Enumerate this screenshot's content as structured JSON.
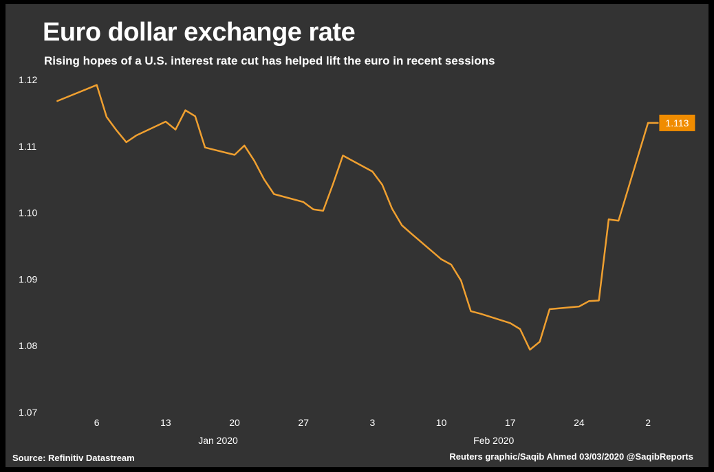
{
  "colors": {
    "background": "#333333",
    "line": "#f0a030",
    "label_bg": "#f08c00",
    "text": "#ffffff"
  },
  "header": {
    "title": "Euro dollar exchange rate",
    "subtitle": "Rising hopes of a U.S. interest rate cut has helped lift the euro in recent sessions"
  },
  "footer": {
    "source": "Source: Refinitiv Datastream",
    "credit": "Reuters graphic/Saqib Ahmed 03/03/2020 @SaqibReports"
  },
  "chart_data": {
    "type": "line",
    "title": "Euro dollar exchange rate",
    "subtitle": "Rising hopes of a U.S. interest rate cut has helped lift the euro in recent sessions",
    "ylim": [
      1.07,
      1.12
    ],
    "yticks": [
      "1.12",
      "1.11",
      "1.10",
      "1.09",
      "1.08",
      "1.07"
    ],
    "ytick_values": [
      1.12,
      1.11,
      1.1,
      1.09,
      1.08,
      1.07
    ],
    "xticks": [
      {
        "label": "6",
        "date": "2020-01-06"
      },
      {
        "label": "13",
        "date": "2020-01-13"
      },
      {
        "label": "20",
        "date": "2020-01-20"
      },
      {
        "label": "27",
        "date": "2020-01-27"
      },
      {
        "label": "3",
        "date": "2020-02-03"
      },
      {
        "label": "10",
        "date": "2020-02-10"
      },
      {
        "label": "17",
        "date": "2020-02-17"
      },
      {
        "label": "24",
        "date": "2020-02-24"
      },
      {
        "label": "2",
        "date": "2020-03-02"
      }
    ],
    "month_labels": [
      {
        "label": "Jan 2020",
        "date": "2020-01-20"
      },
      {
        "label": "Feb 2020",
        "date": "2020-02-17"
      }
    ],
    "grid": false,
    "end_label": "1.113",
    "series": [
      {
        "x": [
          "2020-01-02",
          "2020-01-06",
          "2020-01-07",
          "2020-01-08",
          "2020-01-09",
          "2020-01-10",
          "2020-01-13",
          "2020-01-14",
          "2020-01-15",
          "2020-01-16",
          "2020-01-17",
          "2020-01-20",
          "2020-01-21",
          "2020-01-22",
          "2020-01-23",
          "2020-01-24",
          "2020-01-27",
          "2020-01-28",
          "2020-01-29",
          "2020-01-30",
          "2020-01-31",
          "2020-02-03",
          "2020-02-04",
          "2020-02-05",
          "2020-02-06",
          "2020-02-07",
          "2020-02-10",
          "2020-02-11",
          "2020-02-12",
          "2020-02-13",
          "2020-02-14",
          "2020-02-17",
          "2020-02-18",
          "2020-02-19",
          "2020-02-20",
          "2020-02-21",
          "2020-02-24",
          "2020-02-25",
          "2020-02-26",
          "2020-02-27",
          "2020-02-28",
          "2020-03-02",
          "2020-03-03"
        ],
        "values": [
          1.1168,
          1.1192,
          1.1144,
          1.1124,
          1.1106,
          1.1116,
          1.1137,
          1.1125,
          1.1154,
          1.1145,
          1.1098,
          1.1087,
          1.1101,
          1.1078,
          1.105,
          1.1028,
          1.1016,
          1.1005,
          1.1003,
          1.1043,
          1.1086,
          1.1062,
          1.1042,
          1.1006,
          1.0981,
          1.0968,
          1.093,
          1.0922,
          1.0898,
          1.0852,
          1.0848,
          1.0834,
          1.0825,
          1.0794,
          1.0806,
          1.0855,
          1.0859,
          1.0867,
          1.0868,
          1.099,
          1.0988,
          1.1135,
          1.1135
        ]
      }
    ]
  }
}
